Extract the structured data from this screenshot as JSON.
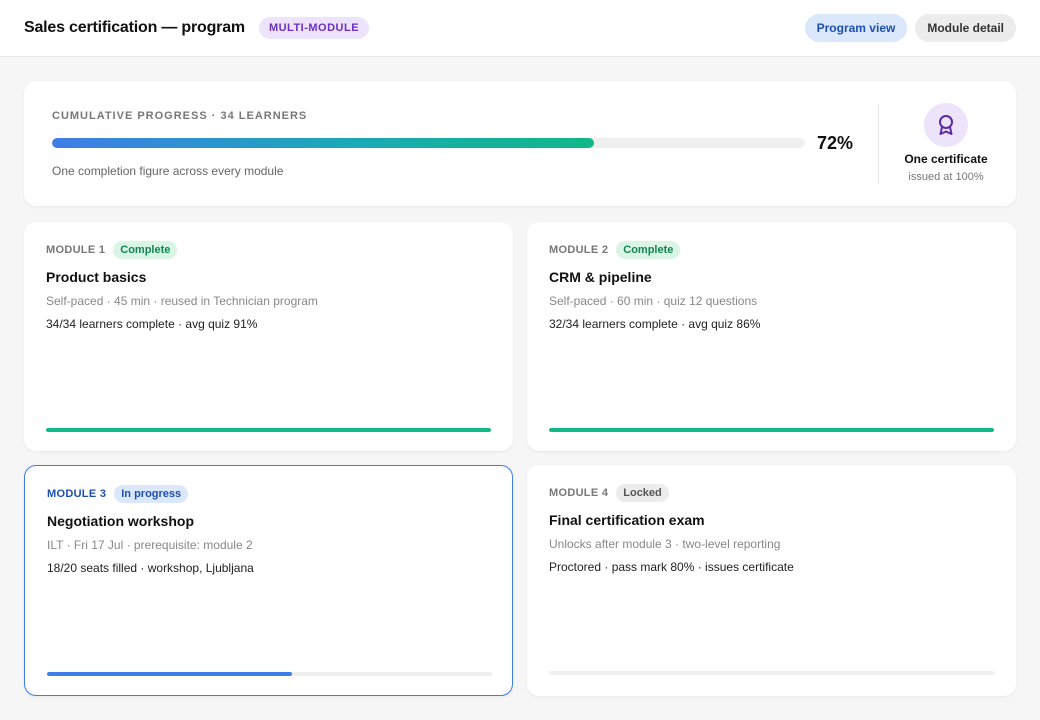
{
  "header": {
    "title": "Sales certification — program",
    "badge": "MULTI-MODULE",
    "views": [
      {
        "label": "Program view",
        "active": true
      },
      {
        "label": "Module detail",
        "active": false
      }
    ]
  },
  "summary": {
    "label": "CUMULATIVE PROGRESS · 34 LEARNERS",
    "progress": 0.72,
    "percent": "72%",
    "subtitle": "One completion figure across every module",
    "certificate_title": "One certificate",
    "certificate_sub": "issued at 100%",
    "certificate_icon": "award-ribbon-icon"
  },
  "modules": [
    {
      "number": "MODULE 1",
      "status": "Complete",
      "title": "Product basics",
      "meta": "Self-paced · 45 min · reused in Technician program",
      "stats": "34/34 learners complete · avg quiz 91%",
      "progress": 1.0
    },
    {
      "number": "MODULE 2",
      "status": "Complete",
      "title": "CRM & pipeline",
      "meta": "Self-paced · 60 min · quiz 12 questions",
      "stats": "32/34 learners complete · avg quiz 86%",
      "progress": 1.0
    },
    {
      "number": "MODULE 3",
      "status": "In progress",
      "title": "Negotiation workshop",
      "meta": "ILT · Fri 17 Jul · prerequisite: module 2",
      "stats": "18/20 seats filled · workshop, Ljubljana",
      "progress": 0.55
    },
    {
      "number": "MODULE 4",
      "status": "Locked",
      "title": "Final certification exam",
      "meta": "Unlocks after module 3 · two-level reporting",
      "stats": "Proctored · pass mark 80% · issues certificate",
      "progress": 0
    }
  ],
  "colors": {
    "accent": "#3f7de8",
    "complete": "#12b886",
    "badge_purple": "#6b2fc2"
  }
}
